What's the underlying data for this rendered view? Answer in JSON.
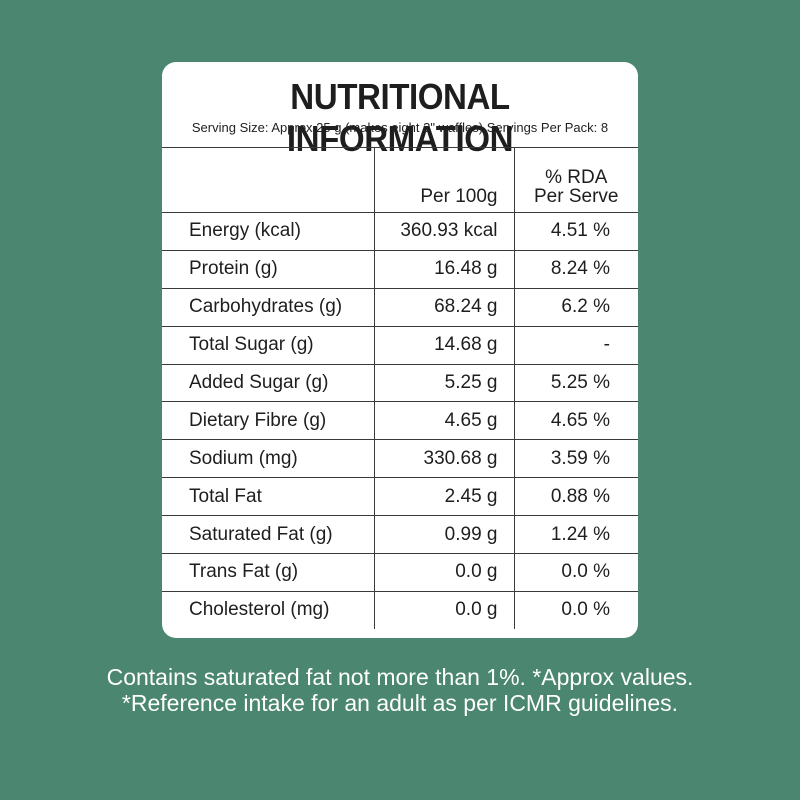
{
  "title": "NUTRITIONAL INFORMATION",
  "serving": "Serving Size: Approx 25 g (makes eight 2\" waffles) Servings Per Pack: 8",
  "headers": {
    "per100g": "Per 100g",
    "rda_line1": "% RDA",
    "rda_line2": "Per Serve"
  },
  "rows": [
    {
      "name": "Energy (kcal)",
      "per100g": "360.93  kcal",
      "rda": "4.51 %"
    },
    {
      "name": "Protein (g)",
      "per100g": "16.48  g",
      "rda": "8.24 %"
    },
    {
      "name": "Carbohydrates (g)",
      "per100g": "68.24  g",
      "rda": "6.2 %"
    },
    {
      "name": "Total Sugar (g)",
      "per100g": "14.68  g",
      "rda": "-"
    },
    {
      "name": "Added Sugar (g)",
      "per100g": "5.25 g",
      "rda": "5.25 %"
    },
    {
      "name": "Dietary Fibre (g)",
      "per100g": "4.65 g",
      "rda": "4.65 %"
    },
    {
      "name": "Sodium (mg)",
      "per100g": "330.68 g",
      "rda": "3.59 %"
    },
    {
      "name": "Total Fat",
      "per100g": "2.45 g",
      "rda": "0.88 %"
    },
    {
      "name": "Saturated Fat (g)",
      "per100g": "0.99 g",
      "rda": "1.24 %"
    },
    {
      "name": "Trans Fat (g)",
      "per100g": "0.0 g",
      "rda": "0.0 %"
    },
    {
      "name": "Cholesterol (mg)",
      "per100g": "0.0 g",
      "rda": "0.0 %"
    }
  ],
  "footer": {
    "line1": "Contains saturated fat not more than 1%. *Approx values.",
    "line2": "*Reference intake for an adult as per ICMR guidelines."
  }
}
